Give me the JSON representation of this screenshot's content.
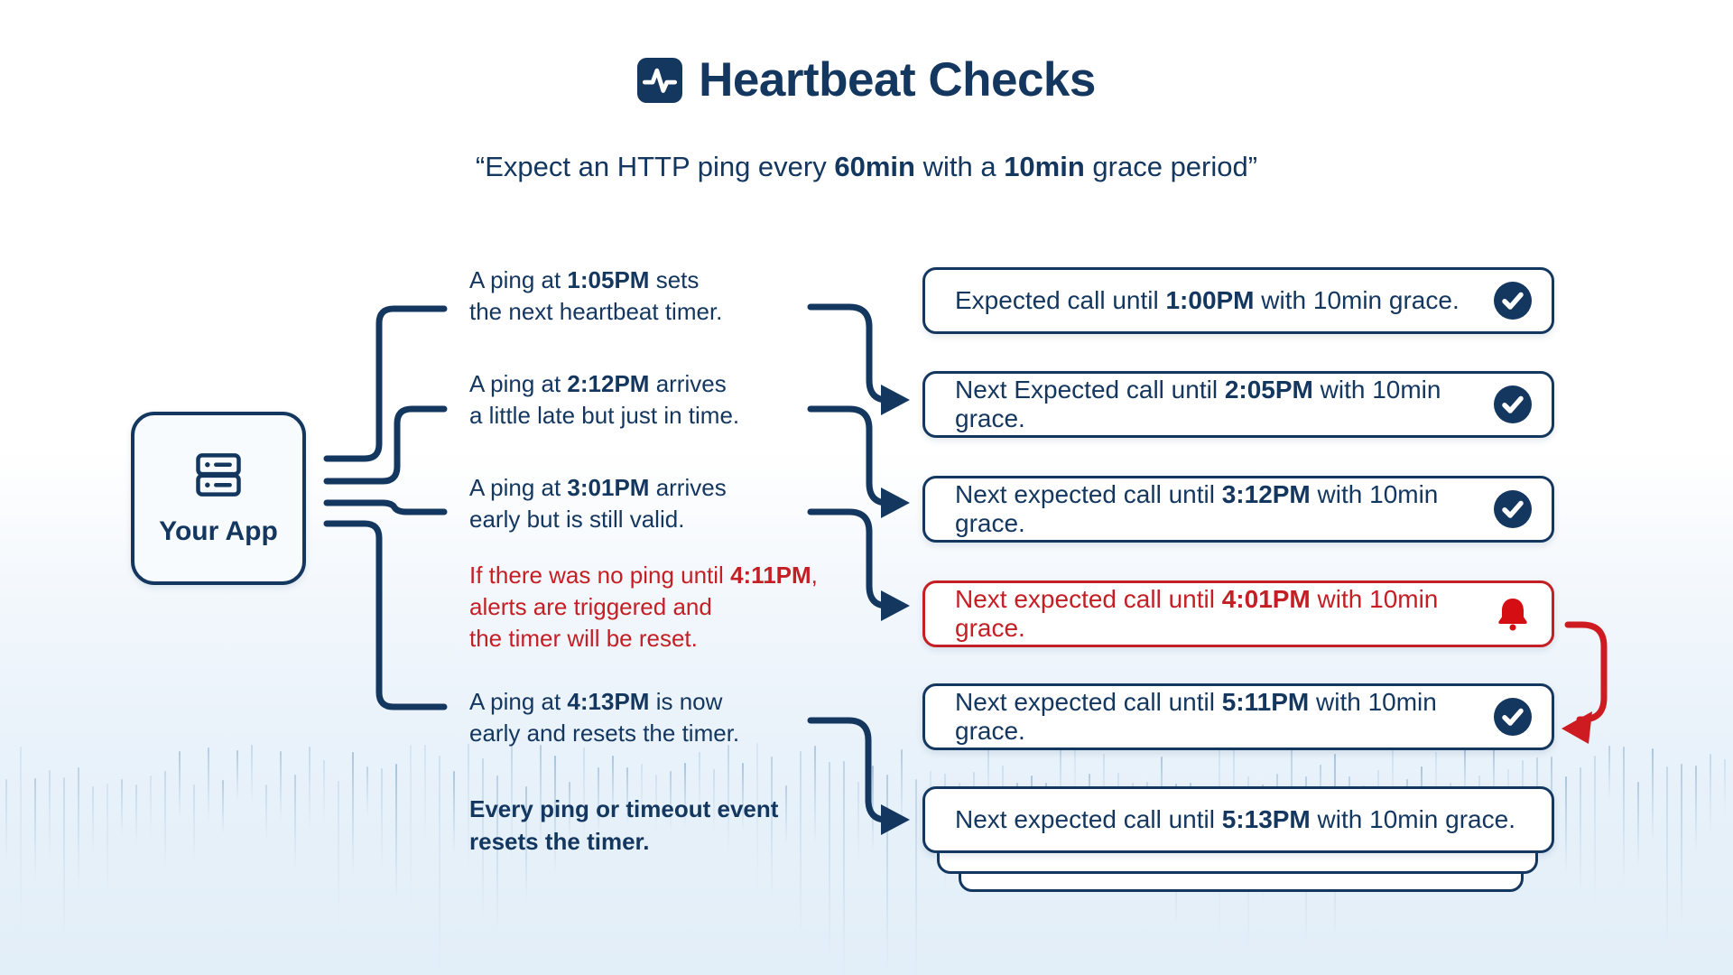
{
  "title": {
    "text": "Heartbeat Checks",
    "icon": "activity-icon"
  },
  "subtitle": {
    "text": "“Expect an HTTP ping every **60min** with a **10min** grace period”"
  },
  "app_box": {
    "label": "Your App",
    "icon": "server-icon"
  },
  "annotations": [
    {
      "text": "A ping at **1:05PM** sets\nthe next heartbeat timer.",
      "style": "normal"
    },
    {
      "text": "A ping at **2:12PM** arrives\na little late but just in time.",
      "style": "normal"
    },
    {
      "text": "A ping at **3:01PM** arrives\nearly but is still valid.",
      "style": "normal"
    },
    {
      "text": "If there was no ping until **4:11PM**,\nalerts are triggered and\nthe timer will be reset.",
      "style": "red"
    },
    {
      "text": "A ping at **4:13PM** is now\nearly and resets the timer.",
      "style": "normal"
    },
    {
      "text": "Every ping or timeout event\nresets the timer.",
      "style": "allbold"
    }
  ],
  "callouts": [
    {
      "text": "Expected call until **1:00PM** with 10min grace.",
      "icon": "check-icon",
      "variant": "normal"
    },
    {
      "text": "Next Expected call until **2:05PM** with 10min grace.",
      "icon": "check-icon",
      "variant": "normal"
    },
    {
      "text": "Next expected call until **3:12PM** with 10min grace.",
      "icon": "check-icon",
      "variant": "normal"
    },
    {
      "text": "Next expected call until **4:01PM** with 10min grace.",
      "icon": "bell-icon",
      "variant": "alert"
    },
    {
      "text": "Next expected call until **5:11PM** with 10min grace.",
      "icon": "check-icon",
      "variant": "normal"
    },
    {
      "text": "Next expected call until **5:13PM** with 10min grace.",
      "icon": "none",
      "variant": "stacked"
    }
  ],
  "colors": {
    "navy": "#143760",
    "red": "#c41f24",
    "bell_red": "#d40e12",
    "arrow_red": "#ce1b21",
    "bar_blue": "#7fb0da"
  }
}
